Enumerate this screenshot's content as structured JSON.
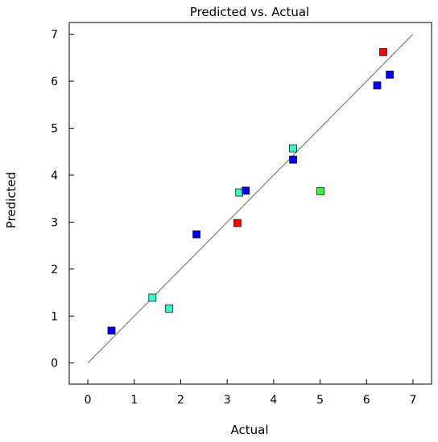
{
  "chart_data": {
    "type": "scatter",
    "title": "Predicted vs. Actual",
    "xlabel": "Actual",
    "ylabel": "Predicted",
    "xlim": [
      -0.4,
      7.4
    ],
    "ylim": [
      -0.45,
      7.25
    ],
    "xticks": [
      0,
      1,
      2,
      3,
      4,
      5,
      6,
      7
    ],
    "yticks": [
      0,
      1,
      2,
      3,
      4,
      5,
      6,
      7
    ],
    "grid": false,
    "reference_line": {
      "from": [
        0,
        0
      ],
      "to": [
        7,
        7
      ],
      "color": "#7f7f7f"
    },
    "points": [
      {
        "x": 0.51,
        "y": 0.69,
        "color": "#0000ff"
      },
      {
        "x": 1.39,
        "y": 1.39,
        "color": "#33ffcc"
      },
      {
        "x": 1.75,
        "y": 1.16,
        "color": "#33ffcc"
      },
      {
        "x": 2.34,
        "y": 2.74,
        "color": "#0000ff"
      },
      {
        "x": 3.22,
        "y": 2.98,
        "color": "#ff0000"
      },
      {
        "x": 3.26,
        "y": 3.63,
        "color": "#33ffcc"
      },
      {
        "x": 3.4,
        "y": 3.67,
        "color": "#0000ff"
      },
      {
        "x": 4.42,
        "y": 4.57,
        "color": "#33ffcc"
      },
      {
        "x": 4.42,
        "y": 4.33,
        "color": "#0000ff"
      },
      {
        "x": 5.01,
        "y": 3.66,
        "color": "#33ff33"
      },
      {
        "x": 6.23,
        "y": 5.91,
        "color": "#0000ff"
      },
      {
        "x": 6.36,
        "y": 6.62,
        "color": "#ff0000"
      },
      {
        "x": 6.5,
        "y": 6.14,
        "color": "#0000ff"
      }
    ]
  }
}
